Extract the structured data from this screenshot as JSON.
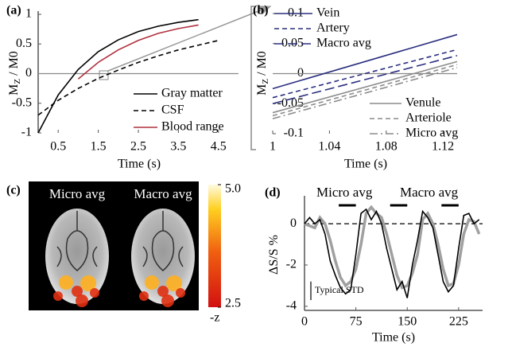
{
  "chart_data": [
    {
      "type": "line",
      "label": "(a)",
      "x_label": "Time (s)",
      "y_label": {
        "main": "M",
        "sub": "Z",
        "rest": " / M0"
      },
      "x": [
        0,
        0.5,
        1,
        1.5,
        2,
        2.5,
        3,
        3.5,
        4,
        4.5
      ],
      "series": [
        {
          "name": "Gray matter",
          "color": "#000000",
          "style": "solid",
          "legend": "bottom-right",
          "values": [
            -1,
            -0.36,
            0.07,
            0.37,
            0.57,
            0.71,
            0.8,
            0.865,
            0.91,
            null
          ]
        },
        {
          "name": "CSF",
          "color": "#000000",
          "style": "dashed",
          "legend": "bottom-right",
          "values": [
            -0.7,
            -0.45,
            -0.25,
            -0.08,
            0.06,
            0.19,
            0.3,
            0.4,
            0.48,
            0.56
          ]
        },
        {
          "name": "Blood range",
          "color": "#b0303f",
          "style": "solid",
          "legend": "bottom-right",
          "values": [
            null,
            null,
            -0.09,
            0.19,
            0.4,
            0.56,
            0.68,
            0.76,
            0.82,
            null
          ]
        }
      ],
      "xlim": [
        0,
        5
      ],
      "ylim": [
        -1,
        1
      ],
      "xticks": [
        0.5,
        1.5,
        2.5,
        3.5,
        4.5
      ],
      "yticks": [
        -1,
        -0.5,
        0,
        0.5,
        1
      ],
      "zero_line": true
    },
    {
      "type": "line",
      "label": "(b)",
      "x_label": "Time (s)",
      "y_label": {
        "main": "M",
        "sub": "Z",
        "rest": " / M0"
      },
      "series": [
        {
          "name": "Vein",
          "color": "#2b2f7e",
          "style": "solid",
          "legend": "top-left",
          "x": [
            1,
            1.13
          ],
          "values": [
            -0.025,
            0.065
          ]
        },
        {
          "name": "Artery",
          "color": "#2b2f7e",
          "style": "dashed",
          "legend": "top-left",
          "x": [
            1,
            1.13
          ],
          "values": [
            -0.04,
            0.04
          ]
        },
        {
          "name": "Macro avg",
          "color": "#2b2f7e",
          "style": "longdash",
          "legend": "top-left",
          "x": [
            1,
            1.13
          ],
          "values": [
            -0.05,
            0.03
          ]
        },
        {
          "name": "Venule",
          "color": "#8c8c8c",
          "style": "solid",
          "legend": "bottom-right",
          "x": [
            1,
            1.13
          ],
          "values": [
            -0.065,
            0.02
          ]
        },
        {
          "name": "Arteriole",
          "color": "#8c8c8c",
          "style": "dashed",
          "legend": "bottom-right",
          "x": [
            1,
            1.13
          ],
          "values": [
            -0.07,
            0.015
          ]
        },
        {
          "name": "Micro avg",
          "color": "#8c8c8c",
          "style": "dashdot",
          "legend": "bottom-right",
          "x": [
            1,
            1.13
          ],
          "values": [
            -0.075,
            0.01
          ]
        }
      ],
      "xlim": [
        1,
        1.13
      ],
      "ylim": [
        -0.1,
        0.1
      ],
      "xticks": [
        1,
        1.04,
        1.08,
        1.12
      ],
      "yticks": [
        -0.1,
        -0.05,
        0,
        0.05,
        0.1
      ],
      "zero_line": true
    },
    {
      "type": "image",
      "label": "(c)",
      "images": [
        "Micro avg",
        "Macro avg"
      ],
      "clim": [
        2.5,
        5
      ],
      "cticks": [
        {
          "value": 5,
          "label": "5.0"
        },
        {
          "value": 2.5,
          "label": "2.5"
        }
      ],
      "colorbar_label": "-z"
    },
    {
      "type": "line",
      "label": "(d)",
      "x_label": "Time (s)",
      "y_label": {
        "main": "ΔS/S %"
      },
      "x": [
        0,
        7.5,
        15,
        22.5,
        30,
        37.5,
        45,
        52.5,
        60,
        67.5,
        75,
        82.5,
        90,
        97.5,
        105,
        112.5,
        120,
        127.5,
        135,
        142.5,
        150,
        157.5,
        165,
        172.5,
        180,
        187.5,
        195,
        202.5,
        210,
        217.5,
        225,
        232.5,
        240,
        247.5,
        255
      ],
      "series": [
        {
          "name": "Micro avg",
          "color": "#a0a0a0",
          "style": "thick",
          "legend": "top",
          "values": [
            0,
            -0.1,
            -0.2,
            0.3,
            0,
            -0.8,
            -1.8,
            -2.6,
            -3.0,
            -2.8,
            -2.2,
            -1,
            0.5,
            0.8,
            0.5,
            0.3,
            -0.5,
            -1.5,
            -2.5,
            -3.1,
            -3.0,
            -2.4,
            -1.5,
            0.2,
            0.5,
            0,
            -1,
            -2.2,
            -3.0,
            -2.9,
            -2.0,
            -0.5,
            0.2,
            0.1,
            -0.5
          ]
        },
        {
          "name": "Macro avg",
          "color": "#000000",
          "style": "solid",
          "legend": "top",
          "values": [
            0,
            0.3,
            0,
            0.2,
            -0.5,
            -1.8,
            -2.5,
            -3.1,
            -3.4,
            -3.2,
            -1.5,
            0.5,
            0.7,
            0.2,
            0.6,
            0,
            -1.2,
            -2.2,
            -3.2,
            -2.8,
            -3.6,
            -2.0,
            -0.8,
            0.6,
            0.3,
            -0.2,
            -1.5,
            -2.8,
            -3.3,
            -3.0,
            -1.2,
            0.4,
            0.5,
            0,
            0.2
          ]
        }
      ],
      "stimulus": [
        [
          50,
          75
        ],
        [
          125,
          150
        ],
        [
          200,
          225
        ]
      ],
      "std_bar": {
        "label": "Typical STD",
        "value": 0.9
      },
      "xlim": [
        0,
        260
      ],
      "ylim": [
        -4.2,
        1.2
      ],
      "xticks": [
        0,
        75,
        150,
        225
      ],
      "yticks": [
        -4,
        -2,
        0
      ],
      "zero_line": true
    }
  ]
}
